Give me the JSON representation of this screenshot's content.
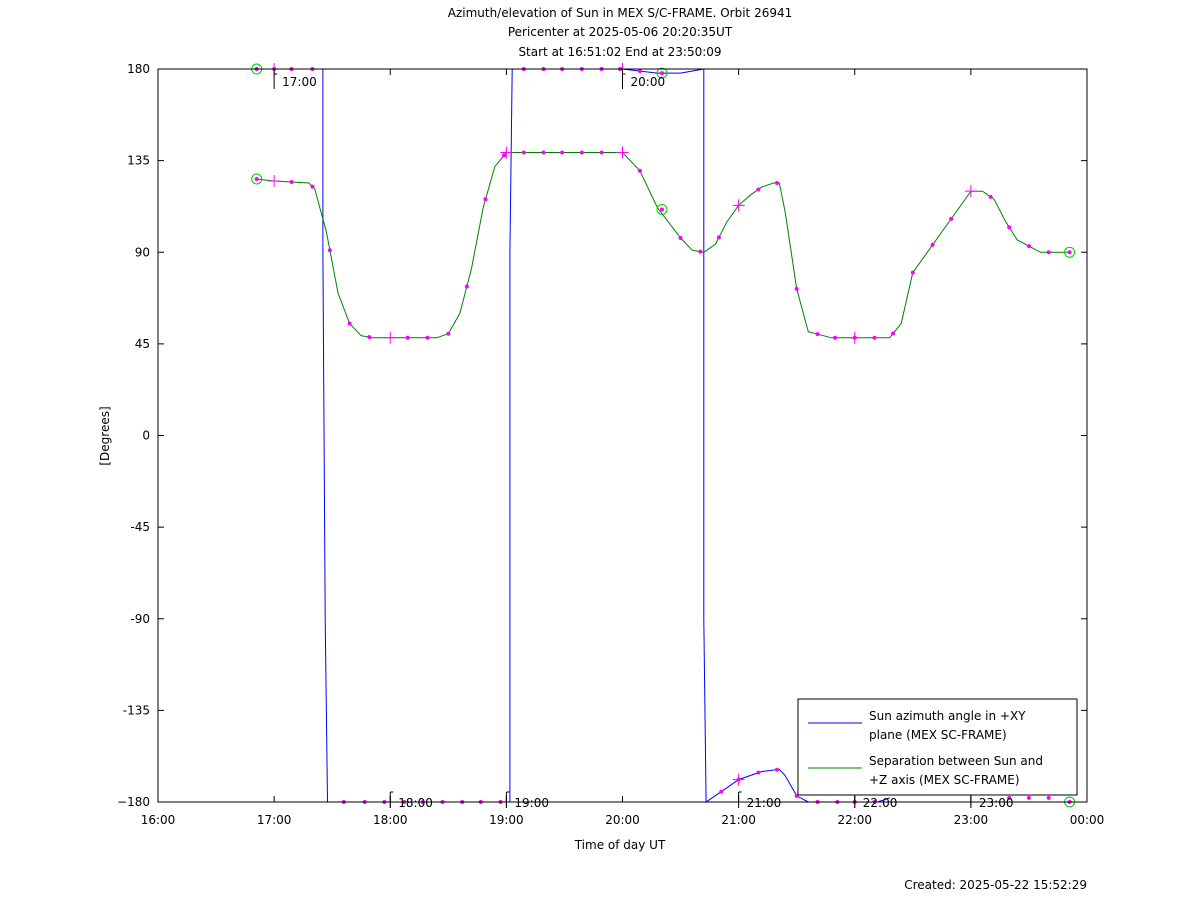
{
  "chart_data": {
    "type": "line",
    "title": [
      "Azimuth/elevation of Sun in MEX S/C-FRAME.  Orbit 26941",
      "Pericenter at 2025-05-06 20:20:35UT",
      "Start at 16:51:02 End at 23:50:09"
    ],
    "xlabel": "Time of day UT",
    "ylabel": "[Degrees]",
    "xlim": [
      16.0,
      24.0
    ],
    "ylim": [
      -180,
      180
    ],
    "x_ticks": [
      {
        "v": 16,
        "label": "16:00"
      },
      {
        "v": 17,
        "label": "17:00"
      },
      {
        "v": 18,
        "label": "18:00"
      },
      {
        "v": 19,
        "label": "19:00"
      },
      {
        "v": 20,
        "label": "20:00"
      },
      {
        "v": 21,
        "label": "21:00"
      },
      {
        "v": 22,
        "label": "22:00"
      },
      {
        "v": 23,
        "label": "23:00"
      },
      {
        "v": 24,
        "label": "00:00"
      }
    ],
    "y_ticks": [
      {
        "v": 180,
        "label": "180"
      },
      {
        "v": 135,
        "label": "135"
      },
      {
        "v": 90,
        "label": "90"
      },
      {
        "v": 45,
        "label": "45"
      },
      {
        "v": 0,
        "label": "0"
      },
      {
        "v": -45,
        "label": "-45"
      },
      {
        "v": -90,
        "label": "-90"
      },
      {
        "v": -135,
        "label": "-135"
      },
      {
        "v": -180,
        "label": "−180"
      }
    ],
    "grid": false,
    "legend_position": "bottom-right",
    "series": [
      {
        "name_lines": [
          "Sun azimuth angle in +XY",
          "plane (MEX SC-FRAME)"
        ],
        "color": "#0000ff",
        "x": [
          16.85,
          17.0,
          17.2,
          17.3,
          17.42,
          17.42,
          17.44,
          17.46,
          17.6,
          17.8,
          18.0,
          18.2,
          18.4,
          18.6,
          18.8,
          19.0,
          19.03,
          19.03,
          19.05,
          19.2,
          19.5,
          19.8,
          20.0,
          20.3,
          20.5,
          20.7,
          20.7,
          20.72,
          20.9,
          21.0,
          21.2,
          21.35,
          21.4,
          21.5,
          21.6,
          21.8,
          22.0,
          22.2,
          22.3
        ],
        "y": [
          180,
          180,
          180,
          180,
          180,
          90,
          -90,
          -180,
          -180,
          -180,
          -180,
          -180,
          -180,
          -180,
          -180,
          -180,
          -180,
          90,
          180,
          180,
          180,
          180,
          180,
          178,
          178,
          180,
          -90,
          -180,
          -173,
          -169,
          -165,
          -164,
          -167,
          -177,
          -180,
          -180,
          -180,
          -180,
          -178
        ]
      },
      {
        "name_lines": [
          "Separation between Sun and",
          "+Z axis (MEX SC-FRAME)"
        ],
        "color": "#008000",
        "x": [
          16.85,
          17.0,
          17.3,
          17.35,
          17.45,
          17.55,
          17.65,
          17.75,
          17.85,
          18.0,
          18.2,
          18.4,
          18.5,
          18.6,
          18.7,
          18.8,
          18.9,
          19.0,
          19.2,
          19.5,
          19.8,
          20.0,
          20.15,
          20.3,
          20.5,
          20.6,
          20.7,
          20.8,
          20.9,
          21.0,
          21.1,
          21.2,
          21.3,
          21.35,
          21.4,
          21.5,
          21.6,
          21.8,
          22.0,
          22.2,
          22.3,
          22.4,
          22.5,
          23.0,
          23.1,
          23.2,
          23.3,
          23.4,
          23.6,
          23.85
        ],
        "y": [
          126,
          125,
          124,
          121,
          100,
          70,
          55,
          49,
          48,
          48,
          48,
          48,
          50,
          60,
          82,
          112,
          132,
          139,
          139,
          139,
          139,
          139,
          130,
          112,
          97,
          91,
          90,
          94,
          105,
          113,
          118,
          122,
          124,
          124,
          110,
          72,
          51,
          48,
          48,
          48,
          48,
          55,
          80,
          120,
          120,
          116,
          105,
          96,
          90,
          90
        ]
      }
    ]
  },
  "markers": {
    "dots_azimuth_x": [
      17.0,
      17.15,
      17.33,
      17.6,
      17.78,
      17.95,
      18.12,
      18.28,
      18.45,
      18.62,
      18.78,
      18.95,
      19.15,
      19.32,
      19.48,
      19.65,
      19.82,
      19.98,
      20.15,
      20.85,
      21.0,
      21.17,
      21.33,
      21.5,
      21.68,
      21.85,
      22.0,
      22.17,
      23.33,
      23.5,
      23.67
    ],
    "dots_separation_x": [
      17.15,
      17.33,
      17.48,
      17.65,
      17.82,
      18.15,
      18.32,
      18.5,
      18.66,
      18.82,
      18.98,
      19.15,
      19.32,
      19.48,
      19.65,
      19.82,
      20.15,
      20.5,
      20.67,
      20.83,
      21.17,
      21.33,
      21.5,
      21.68,
      21.83,
      22.0,
      22.17,
      22.33,
      22.5,
      22.67,
      22.83,
      23.17,
      23.33,
      23.5,
      23.67
    ],
    "crosses": [
      {
        "x": 17.0,
        "y": 180
      },
      {
        "x": 17.0,
        "y": 125
      },
      {
        "x": 18.0,
        "y": 48
      },
      {
        "x": 19.0,
        "y": 139
      },
      {
        "x": 20.0,
        "y": 139
      },
      {
        "x": 20.0,
        "y": 180
      },
      {
        "x": 21.0,
        "y": 113
      },
      {
        "x": 22.0,
        "y": 48
      },
      {
        "x": 23.0,
        "y": 120
      },
      {
        "x": 18.0,
        "y": -180
      },
      {
        "x": 19.0,
        "y": -180
      },
      {
        "x": 21.0,
        "y": -169
      },
      {
        "x": 22.0,
        "y": -180
      },
      {
        "x": 23.0,
        "y": -180
      }
    ],
    "circles": [
      {
        "x": 16.85,
        "y": 180
      },
      {
        "x": 16.85,
        "y": 126
      },
      {
        "x": 20.34,
        "y": 178
      },
      {
        "x": 20.34,
        "y": 111
      },
      {
        "x": 23.85,
        "y": 90
      },
      {
        "x": 23.85,
        "y": -180
      }
    ],
    "hour_flags": [
      {
        "x": 17.0,
        "y": 180,
        "label": "17:00"
      },
      {
        "x": 20.0,
        "y": 180,
        "label": "20:00"
      },
      {
        "x": 18.0,
        "y": -180,
        "label": "18:00"
      },
      {
        "x": 19.0,
        "y": -180,
        "label": "19:00"
      },
      {
        "x": 21.0,
        "y": -180,
        "label": "21:00"
      },
      {
        "x": 22.0,
        "y": -180,
        "label": "22:00"
      },
      {
        "x": 23.0,
        "y": -180,
        "label": "23:00"
      }
    ]
  },
  "footer": {
    "created": "Created: 2025-05-22 15:52:29"
  }
}
